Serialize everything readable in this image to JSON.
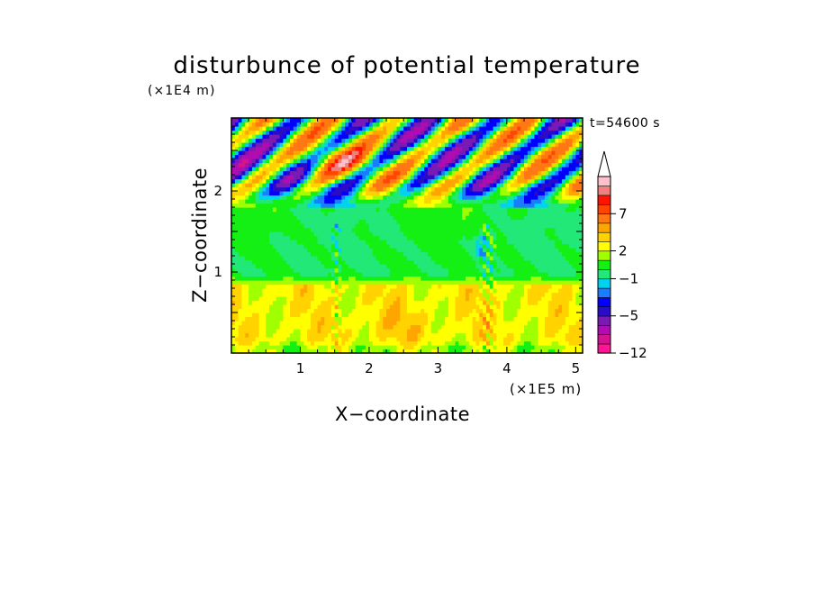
{
  "chart_data": {
    "type": "heatmap",
    "title": "disturbunce of potential temperature",
    "xlabel": "X−coordinate",
    "ylabel": "Z−coordinate",
    "x_unit": "(×1E5 m)",
    "y_unit": "(×1E4 m)",
    "time_label": "t=54600 s",
    "x_ticks": [
      "1",
      "2",
      "3",
      "4",
      "5"
    ],
    "x_tick_values": [
      1,
      2,
      3,
      4,
      5
    ],
    "y_ticks": [
      "1",
      "2"
    ],
    "y_tick_values": [
      1,
      2
    ],
    "xlim": [
      0,
      5.1
    ],
    "ylim": [
      0,
      2.9
    ],
    "colorbar": {
      "levels": [
        -12,
        -10,
        -8,
        -6.5,
        -5,
        -4,
        -3,
        -2,
        -1,
        0,
        1,
        2,
        3,
        4,
        5,
        7,
        8,
        9,
        10,
        11
      ],
      "tick_labels": [
        "7",
        "2",
        "−1",
        "−5",
        "−12"
      ],
      "tick_values": [
        7,
        2,
        -1,
        -5,
        -12
      ],
      "colors": [
        "#ff1493",
        "#d4148c",
        "#b00cb0",
        "#7a1ab4",
        "#2a0cc8",
        "#0000ff",
        "#1a7cff",
        "#00d2f0",
        "#22e878",
        "#14f014",
        "#a0ff00",
        "#ffff00",
        "#ffd200",
        "#ffa500",
        "#ff7814",
        "#ff4500",
        "#ff1400",
        "#f08080",
        "#ffc0cb"
      ],
      "extend": "max"
    },
    "z_summary": {
      "lower_layer_0_to_0.85": "positive 2 to 4 (yellow / orange)",
      "middle_layer_0.9_to_1.8": "near zero −1 to 1 (green)",
      "upper_layer_1.8_to_2.9": "wave pattern alternating −5 to 7",
      "plume_columns_x": [
        1.5,
        3.7
      ]
    }
  },
  "colors": {
    "background": "#ffffff",
    "axes": "#000000"
  }
}
